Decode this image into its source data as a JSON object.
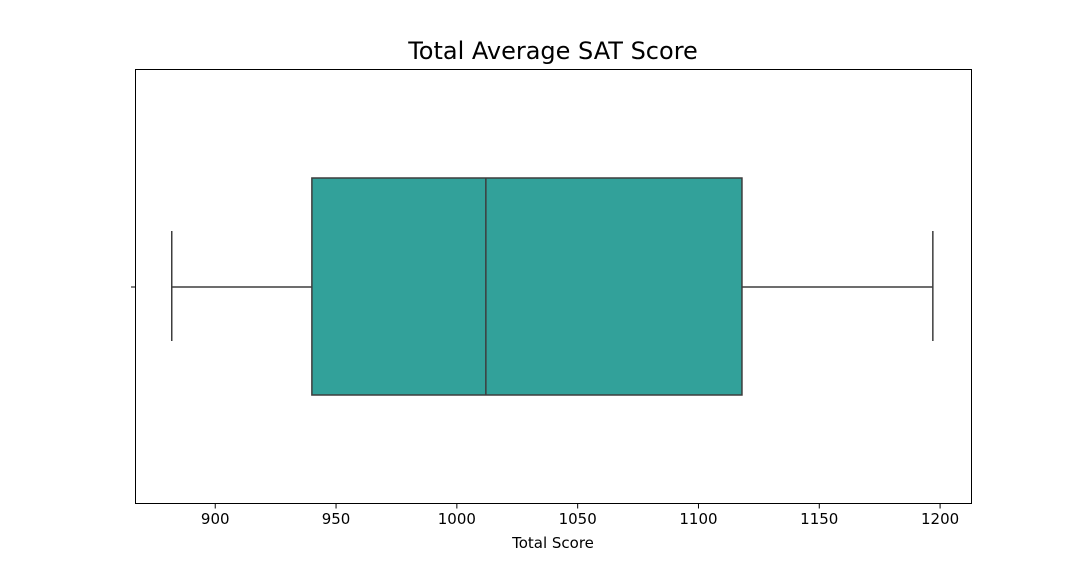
{
  "chart_data": {
    "type": "box",
    "orientation": "horizontal",
    "title": "Total Average SAT Score",
    "xlabel": "Total Score",
    "ylabel": "",
    "xlim": [
      867,
      1213
    ],
    "xticks": [
      900,
      950,
      1000,
      1050,
      1100,
      1150,
      1200
    ],
    "xtick_labels": [
      "900",
      "950",
      "1000",
      "1050",
      "1100",
      "1150",
      "1200"
    ],
    "box": {
      "whisker_low": 882,
      "q1": 940,
      "median": 1012,
      "q3": 1118,
      "whisker_high": 1197
    },
    "grid": false,
    "colors": {
      "box_fill": "#32a19a",
      "line": "#3d3d3d",
      "axes": "#000000"
    }
  }
}
